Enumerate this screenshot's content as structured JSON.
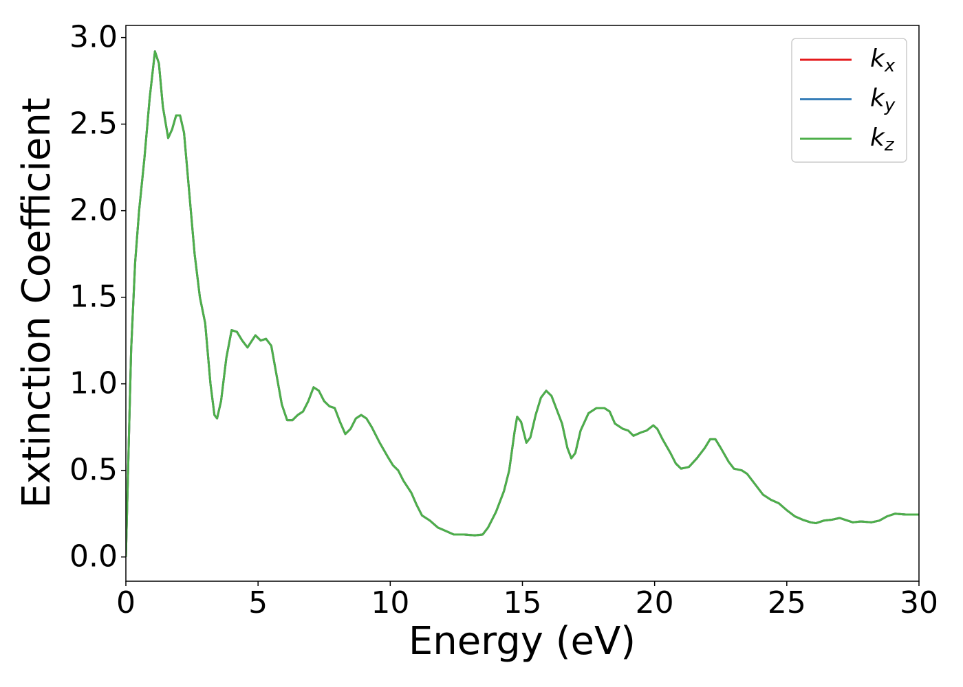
{
  "chart_data": {
    "type": "line",
    "xlabel": "Energy (eV)",
    "ylabel": "Extinction Coefficient",
    "x": [
      0,
      0.1,
      0.2,
      0.35,
      0.5,
      0.7,
      0.9,
      1.1,
      1.25,
      1.4,
      1.6,
      1.75,
      1.9,
      2.05,
      2.2,
      2.4,
      2.6,
      2.8,
      3.0,
      3.2,
      3.35,
      3.45,
      3.6,
      3.8,
      4.0,
      4.2,
      4.4,
      4.6,
      4.9,
      5.1,
      5.3,
      5.5,
      5.7,
      5.9,
      6.1,
      6.3,
      6.5,
      6.7,
      6.9,
      7.1,
      7.3,
      7.5,
      7.7,
      7.9,
      8.1,
      8.3,
      8.5,
      8.7,
      8.9,
      9.1,
      9.3,
      9.6,
      9.9,
      10.1,
      10.3,
      10.5,
      10.8,
      11.0,
      11.2,
      11.5,
      11.8,
      12.1,
      12.4,
      12.8,
      13.2,
      13.5,
      13.7,
      14.0,
      14.3,
      14.5,
      14.7,
      14.8,
      14.95,
      15.15,
      15.3,
      15.5,
      15.7,
      15.9,
      16.1,
      16.3,
      16.5,
      16.7,
      16.85,
      17.0,
      17.2,
      17.5,
      17.8,
      18.1,
      18.3,
      18.5,
      18.8,
      19.0,
      19.2,
      19.5,
      19.7,
      19.95,
      20.1,
      20.3,
      20.6,
      20.8,
      21.0,
      21.3,
      21.6,
      21.9,
      22.1,
      22.3,
      22.5,
      22.8,
      23.0,
      23.3,
      23.5,
      23.8,
      24.1,
      24.4,
      24.7,
      25.0,
      25.3,
      25.6,
      25.9,
      26.1,
      26.4,
      26.7,
      27.0,
      27.2,
      27.5,
      27.8,
      28.2,
      28.5,
      28.8,
      29.1,
      29.5,
      30.0
    ],
    "series": [
      {
        "name": "k_x",
        "color": "#e41a1c",
        "values": [
          0,
          0.6,
          1.2,
          1.7,
          2.0,
          2.3,
          2.65,
          2.92,
          2.85,
          2.6,
          2.42,
          2.47,
          2.55,
          2.55,
          2.45,
          2.1,
          1.75,
          1.5,
          1.35,
          1.0,
          0.82,
          0.8,
          0.9,
          1.15,
          1.31,
          1.3,
          1.25,
          1.21,
          1.28,
          1.25,
          1.26,
          1.22,
          1.05,
          0.88,
          0.79,
          0.79,
          0.82,
          0.84,
          0.9,
          0.98,
          0.96,
          0.9,
          0.87,
          0.86,
          0.78,
          0.71,
          0.74,
          0.8,
          0.82,
          0.8,
          0.75,
          0.66,
          0.58,
          0.53,
          0.5,
          0.44,
          0.37,
          0.3,
          0.24,
          0.21,
          0.17,
          0.15,
          0.13,
          0.13,
          0.125,
          0.13,
          0.17,
          0.26,
          0.38,
          0.5,
          0.72,
          0.81,
          0.78,
          0.66,
          0.69,
          0.82,
          0.92,
          0.96,
          0.93,
          0.85,
          0.77,
          0.63,
          0.57,
          0.6,
          0.73,
          0.83,
          0.86,
          0.86,
          0.84,
          0.77,
          0.74,
          0.73,
          0.7,
          0.72,
          0.73,
          0.76,
          0.74,
          0.68,
          0.6,
          0.54,
          0.51,
          0.52,
          0.57,
          0.63,
          0.68,
          0.68,
          0.63,
          0.55,
          0.51,
          0.5,
          0.48,
          0.42,
          0.36,
          0.33,
          0.31,
          0.27,
          0.235,
          0.215,
          0.2,
          0.195,
          0.21,
          0.215,
          0.225,
          0.215,
          0.2,
          0.205,
          0.2,
          0.21,
          0.235,
          0.25,
          0.245,
          0.245
        ]
      },
      {
        "name": "k_y",
        "color": "#377eb8",
        "values": [
          0,
          0.6,
          1.2,
          1.7,
          2.0,
          2.3,
          2.65,
          2.92,
          2.85,
          2.6,
          2.42,
          2.47,
          2.55,
          2.55,
          2.45,
          2.1,
          1.75,
          1.5,
          1.35,
          1.0,
          0.82,
          0.8,
          0.9,
          1.15,
          1.31,
          1.3,
          1.25,
          1.21,
          1.28,
          1.25,
          1.26,
          1.22,
          1.05,
          0.88,
          0.79,
          0.79,
          0.82,
          0.84,
          0.9,
          0.98,
          0.96,
          0.9,
          0.87,
          0.86,
          0.78,
          0.71,
          0.74,
          0.8,
          0.82,
          0.8,
          0.75,
          0.66,
          0.58,
          0.53,
          0.5,
          0.44,
          0.37,
          0.3,
          0.24,
          0.21,
          0.17,
          0.15,
          0.13,
          0.13,
          0.125,
          0.13,
          0.17,
          0.26,
          0.38,
          0.5,
          0.72,
          0.81,
          0.78,
          0.66,
          0.69,
          0.82,
          0.92,
          0.96,
          0.93,
          0.85,
          0.77,
          0.63,
          0.57,
          0.6,
          0.73,
          0.83,
          0.86,
          0.86,
          0.84,
          0.77,
          0.74,
          0.73,
          0.7,
          0.72,
          0.73,
          0.76,
          0.74,
          0.68,
          0.6,
          0.54,
          0.51,
          0.52,
          0.57,
          0.63,
          0.68,
          0.68,
          0.63,
          0.55,
          0.51,
          0.5,
          0.48,
          0.42,
          0.36,
          0.33,
          0.31,
          0.27,
          0.235,
          0.215,
          0.2,
          0.195,
          0.21,
          0.215,
          0.225,
          0.215,
          0.2,
          0.205,
          0.2,
          0.21,
          0.235,
          0.25,
          0.245,
          0.245
        ]
      },
      {
        "name": "k_z",
        "color": "#4daf4a",
        "values": [
          0,
          0.6,
          1.2,
          1.7,
          2.0,
          2.3,
          2.65,
          2.92,
          2.85,
          2.6,
          2.42,
          2.47,
          2.55,
          2.55,
          2.45,
          2.1,
          1.75,
          1.5,
          1.35,
          1.0,
          0.82,
          0.8,
          0.9,
          1.15,
          1.31,
          1.3,
          1.25,
          1.21,
          1.28,
          1.25,
          1.26,
          1.22,
          1.05,
          0.88,
          0.79,
          0.79,
          0.82,
          0.84,
          0.9,
          0.98,
          0.96,
          0.9,
          0.87,
          0.86,
          0.78,
          0.71,
          0.74,
          0.8,
          0.82,
          0.8,
          0.75,
          0.66,
          0.58,
          0.53,
          0.5,
          0.44,
          0.37,
          0.3,
          0.24,
          0.21,
          0.17,
          0.15,
          0.13,
          0.13,
          0.125,
          0.13,
          0.17,
          0.26,
          0.38,
          0.5,
          0.72,
          0.81,
          0.78,
          0.66,
          0.69,
          0.82,
          0.92,
          0.96,
          0.93,
          0.85,
          0.77,
          0.63,
          0.57,
          0.6,
          0.73,
          0.83,
          0.86,
          0.86,
          0.84,
          0.77,
          0.74,
          0.73,
          0.7,
          0.72,
          0.73,
          0.76,
          0.74,
          0.68,
          0.6,
          0.54,
          0.51,
          0.52,
          0.57,
          0.63,
          0.68,
          0.68,
          0.63,
          0.55,
          0.51,
          0.5,
          0.48,
          0.42,
          0.36,
          0.33,
          0.31,
          0.27,
          0.235,
          0.215,
          0.2,
          0.195,
          0.21,
          0.215,
          0.225,
          0.215,
          0.2,
          0.205,
          0.2,
          0.21,
          0.235,
          0.25,
          0.245,
          0.245
        ]
      }
    ],
    "xlim": [
      0,
      30
    ],
    "xticks": [
      0,
      5,
      10,
      15,
      20,
      25,
      30
    ],
    "ylim": [
      -0.14,
      3.07
    ],
    "yticks": [
      {
        "value": 0,
        "label": "0.0"
      },
      0.5,
      {
        "value": 1,
        "label": "1.0"
      },
      1.5,
      {
        "value": 2,
        "label": "2.0"
      },
      2.5,
      {
        "value": 3,
        "label": "3.0"
      }
    ],
    "grid": false,
    "legend": "upper right"
  }
}
